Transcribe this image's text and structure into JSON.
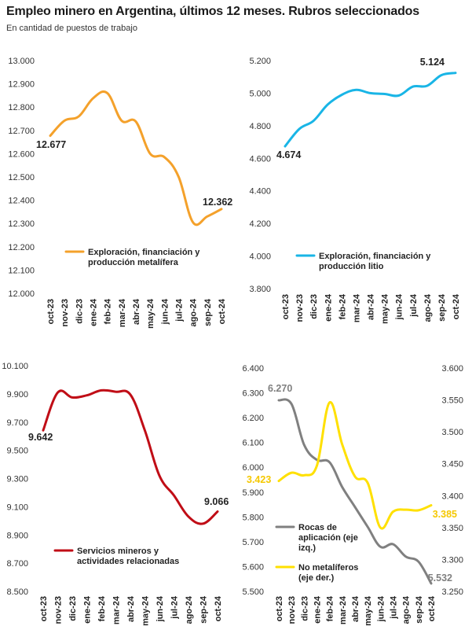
{
  "title": "Empleo minero en Argentina, últimos 12 meses. Rubros seleccionados",
  "subtitle": "En cantidad de puestos de trabajo",
  "chart_data": [
    {
      "type": "line",
      "categories": [
        "oct-23",
        "nov-23",
        "dic-23",
        "ene-24",
        "feb-24",
        "mar-24",
        "abr-24",
        "may-24",
        "jun-24",
        "jul-24",
        "ago-24",
        "sep-24",
        "oct-24"
      ],
      "series": [
        {
          "name": "Exploración, financiación y producción metalífera",
          "color": "#F4A12B",
          "values": [
            12677,
            12742,
            12760,
            12838,
            12860,
            12742,
            12738,
            12600,
            12585,
            12500,
            12305,
            12330,
            12362
          ]
        }
      ],
      "legend": [
        "Exploración, financiación y",
        "producción metalífera"
      ],
      "yticks": [
        "13.000",
        "12.900",
        "12.800",
        "12.700",
        "12.600",
        "12.500",
        "12.400",
        "12.300",
        "12.200",
        "12.100",
        "12.000"
      ],
      "ylim": [
        12000,
        13000
      ],
      "first_label": "12.677",
      "last_label": "12.362"
    },
    {
      "type": "line",
      "categories": [
        "oct-23",
        "nov-23",
        "dic-23",
        "ene-24",
        "feb-24",
        "mar-24",
        "abr-24",
        "may-24",
        "jun-24",
        "jul-24",
        "ago-24",
        "sep-24",
        "oct-24"
      ],
      "series": [
        {
          "name": "Exploración, financiación y producción litio",
          "color": "#19B5E6",
          "values": [
            4674,
            4780,
            4830,
            4930,
            4990,
            5020,
            5000,
            4995,
            4985,
            5040,
            5045,
            5110,
            5124
          ]
        }
      ],
      "legend": [
        "Exploración, financiación y",
        "producción litio"
      ],
      "yticks": [
        "5.200",
        "5.000",
        "4.800",
        "4.600",
        "4.400",
        "4.200",
        "4.000",
        "3.800"
      ],
      "ylim": [
        3800,
        5200
      ],
      "first_label": "4.674",
      "last_label": "5.124"
    },
    {
      "type": "line",
      "categories": [
        "oct-23",
        "nov-23",
        "dic-23",
        "ene-24",
        "feb-24",
        "mar-24",
        "abr-24",
        "may-24",
        "jun-24",
        "jul-24",
        "ago-24",
        "sep-24",
        "oct-24"
      ],
      "series": [
        {
          "name": "Servicios mineros y actividades relacionadas",
          "color": "#C00D16",
          "values": [
            9642,
            9910,
            9875,
            9890,
            9925,
            9915,
            9895,
            9640,
            9320,
            9180,
            9030,
            8980,
            9066
          ]
        }
      ],
      "legend": [
        "Servicios mineros y",
        "actividades relacionadas"
      ],
      "yticks": [
        "10.100",
        "9.900",
        "9.700",
        "9.500",
        "9.300",
        "9.100",
        "8.900",
        "8.700",
        "8.500"
      ],
      "ylim": [
        8500,
        10100
      ],
      "first_label": "9.642",
      "last_label": "9.066"
    },
    {
      "type": "line",
      "categories": [
        "oct-23",
        "nov-23",
        "dic-23",
        "ene-24",
        "feb-24",
        "mar-24",
        "abr-24",
        "may-24",
        "jun-24",
        "jul-24",
        "ago-24",
        "sep-24",
        "oct-24"
      ],
      "series": [
        {
          "name": "Rocas de aplicación (eje izq.)",
          "color": "#808080",
          "axis": "left",
          "values": [
            6270,
            6255,
            6090,
            6030,
            6020,
            5920,
            5840,
            5760,
            5680,
            5690,
            5640,
            5620,
            5532
          ]
        },
        {
          "name": "No metalíferos (eje der.)",
          "color": "#FFE000",
          "axis": "right",
          "values": [
            3423,
            3436,
            3432,
            3447,
            3546,
            3480,
            3430,
            3420,
            3350,
            3375,
            3378,
            3377,
            3385
          ]
        }
      ],
      "legend": [
        {
          "lines": [
            "Rocas de",
            "aplicación (eje",
            "izq.)"
          ],
          "color": "#808080"
        },
        {
          "lines": [
            "No metalíferos",
            "(eje der.)"
          ],
          "color": "#FFE000"
        }
      ],
      "yticks": [
        "6.400",
        "6.300",
        "6.200",
        "6.100",
        "6.000",
        "5.900",
        "5.800",
        "5.700",
        "5.600",
        "5.500"
      ],
      "yticks_right": [
        "3.600",
        "3.550",
        "3.500",
        "3.450",
        "3.400",
        "3.350",
        "3.300",
        "3.250"
      ],
      "ylim": [
        5500,
        6400
      ],
      "ylim_right": [
        3250,
        3600
      ],
      "first_label": "6.270",
      "last_label": "5.532",
      "first_label_right": "3.423",
      "last_label_right": "3.385"
    }
  ]
}
